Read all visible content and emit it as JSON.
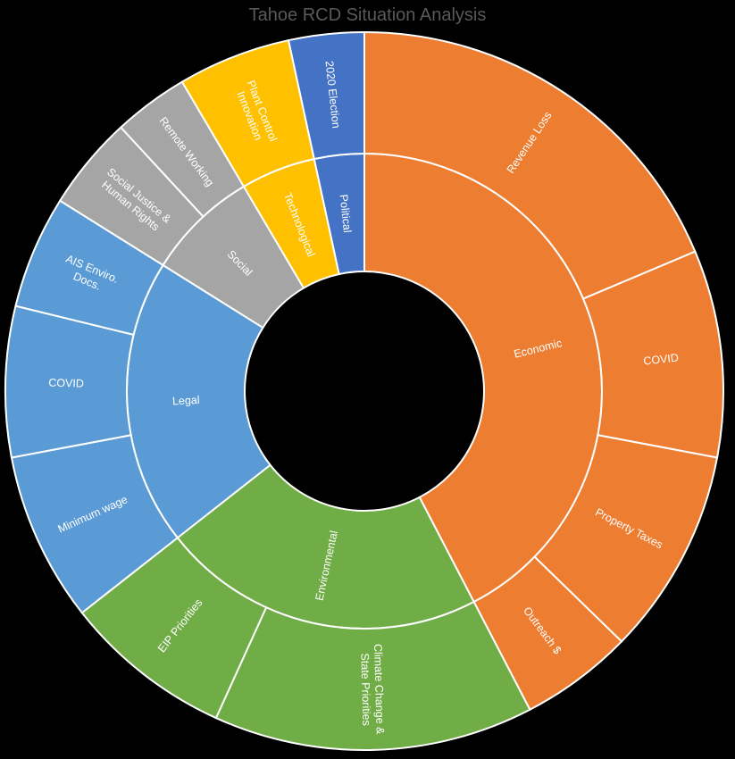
{
  "chart_data": {
    "type": "sunburst",
    "title": "Tahoe RCD Situation Analysis",
    "categories": [
      {
        "name": "Economic",
        "color": "#ED7D31",
        "children": [
          {
            "name": "Revenue Loss",
            "value": 22
          },
          {
            "name": "COVID",
            "value": 11
          },
          {
            "name": "Property Taxes",
            "value": 11
          },
          {
            "name": "Outreach $",
            "value": 6
          }
        ]
      },
      {
        "name": "Environmental",
        "color": "#70AD47",
        "children": [
          {
            "name": "Climate Change & State Priorities",
            "value": 17
          },
          {
            "name": "EIP Priorities",
            "value": 9
          }
        ]
      },
      {
        "name": "Legal",
        "color": "#5B9BD5",
        "children": [
          {
            "name": "Minimum wage",
            "value": 9
          },
          {
            "name": "COVID",
            "value": 8
          },
          {
            "name": "AIS Enviro. Docs.",
            "value": 6
          }
        ]
      },
      {
        "name": "Social",
        "color": "#A5A5A5",
        "children": [
          {
            "name": "Social Justice & Human Rights",
            "value": 5
          },
          {
            "name": "Remote Working",
            "value": 4
          }
        ]
      },
      {
        "name": "Technological",
        "color": "#FFC000",
        "children": [
          {
            "name": "Plant Control Innovation",
            "value": 6
          }
        ]
      },
      {
        "name": "Political",
        "color": "#4472C4",
        "children": [
          {
            "name": "2020 Election",
            "value": 4
          }
        ]
      }
    ]
  }
}
